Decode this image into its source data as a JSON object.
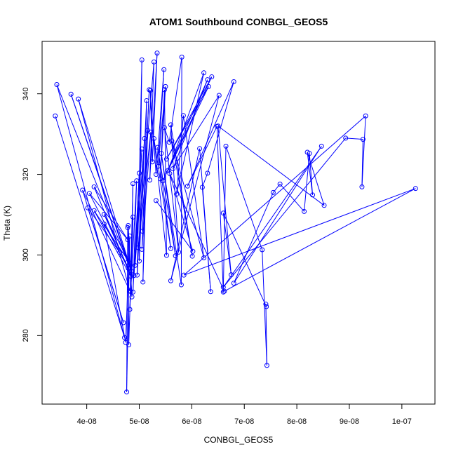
{
  "chart_data": {
    "type": "scatter",
    "title": "ATOM1 Southbound CONBGL_GEOS5",
    "xlabel": "CONBGL_GEOS5",
    "ylabel": "Theta (K)",
    "xlim": [
      3.15e-08,
      1.063e-07
    ],
    "ylim": [
      263,
      353
    ],
    "x_ticks": [
      {
        "value": 4e-08,
        "label": "4e-08"
      },
      {
        "value": 5e-08,
        "label": "5e-08"
      },
      {
        "value": 6e-08,
        "label": "6e-08"
      },
      {
        "value": 7e-08,
        "label": "7e-08"
      },
      {
        "value": 8e-08,
        "label": "8e-08"
      },
      {
        "value": 9e-08,
        "label": "9e-08"
      },
      {
        "value": 1e-07,
        "label": "1e-07"
      }
    ],
    "y_ticks": [
      {
        "value": 280,
        "label": "280"
      },
      {
        "value": 300,
        "label": "300"
      },
      {
        "value": 320,
        "label": "320"
      },
      {
        "value": 340,
        "label": "340"
      }
    ],
    "grid": false,
    "series": [
      {
        "color": "#0000ff",
        "marker": "open-circle",
        "line": true,
        "points": [
          [
            3.4e-08,
            334.5
          ],
          [
            4.72e-08,
            279.5
          ],
          [
            3.43e-08,
            342.3
          ],
          [
            4.78e-08,
            298.2
          ],
          [
            3.7e-08,
            339.9
          ],
          [
            4.85e-08,
            296.0
          ],
          [
            3.84e-08,
            338.7
          ],
          [
            4.82e-08,
            291.1
          ],
          [
            3.92e-08,
            316.1
          ],
          [
            4.7e-08,
            283.2
          ],
          [
            4.02e-08,
            311.7
          ],
          [
            4.63e-08,
            300.6
          ],
          [
            4.05e-08,
            315.3
          ],
          [
            4.78e-08,
            303.8
          ],
          [
            4.14e-08,
            316.9
          ],
          [
            4.84e-08,
            294.7
          ],
          [
            4.14e-08,
            311.0
          ],
          [
            4.82e-08,
            298.0
          ],
          [
            4.33e-08,
            310.1
          ],
          [
            4.79e-08,
            296.7
          ],
          [
            4.33e-08,
            307.7
          ],
          [
            4.74e-08,
            278.3
          ],
          [
            4.82e-08,
            304.7
          ],
          [
            4.76e-08,
            266.0
          ],
          [
            4.78e-08,
            306.8
          ],
          [
            4.86e-08,
            289.6
          ],
          [
            4.79e-08,
            307.3
          ],
          [
            4.8e-08,
            277.7
          ],
          [
            4.88e-08,
            309.4
          ],
          [
            4.84e-08,
            290.9
          ],
          [
            4.88e-08,
            317.7
          ],
          [
            4.82e-08,
            286.5
          ],
          [
            4.95e-08,
            318.4
          ],
          [
            4.88e-08,
            290.8
          ],
          [
            5e-08,
            320.3
          ],
          [
            4.9e-08,
            294.9
          ],
          [
            5.05e-08,
            326.3
          ],
          [
            4.92e-08,
            297.4
          ],
          [
            5.1e-08,
            328.9
          ],
          [
            4.96e-08,
            295.0
          ],
          [
            5.05e-08,
            348.4
          ],
          [
            5e-08,
            298.5
          ],
          [
            5.14e-08,
            338.3
          ],
          [
            5.07e-08,
            293.3
          ],
          [
            5.16e-08,
            330.9
          ],
          [
            5.06e-08,
            305.9
          ],
          [
            5.19e-08,
            341.0
          ],
          [
            5.05e-08,
            301.4
          ],
          [
            5.22e-08,
            330.5
          ],
          [
            4.98e-08,
            301.8
          ],
          [
            5.28e-08,
            347.9
          ],
          [
            5.2e-08,
            318.6
          ],
          [
            5.34e-08,
            350.1
          ],
          [
            5.25e-08,
            323.1
          ],
          [
            5.21e-08,
            340.8
          ],
          [
            5.32e-08,
            320.0
          ],
          [
            5.47e-08,
            346.0
          ],
          [
            5.36e-08,
            322.0
          ],
          [
            5.5e-08,
            341.8
          ],
          [
            5.4e-08,
            318.9
          ],
          [
            5.48e-08,
            341.0
          ],
          [
            5.52e-08,
            299.9
          ],
          [
            5.28e-08,
            328.9
          ],
          [
            5.6e-08,
            301.6
          ],
          [
            5.35e-08,
            326.7
          ],
          [
            5.69e-08,
            299.8
          ],
          [
            5.42e-08,
            325.2
          ],
          [
            5.8e-08,
            292.6
          ],
          [
            5.81e-08,
            349.1
          ],
          [
            5.57e-08,
            328.0
          ],
          [
            5.48e-08,
            331.6
          ],
          [
            5.75e-08,
            300.7
          ],
          [
            5.6e-08,
            332.3
          ],
          [
            6.01e-08,
            299.7
          ],
          [
            5.62e-08,
            328.3
          ],
          [
            6.23e-08,
            299.3
          ],
          [
            5.84e-08,
            334.6
          ],
          [
            5.71e-08,
            315.1
          ],
          [
            6.23e-08,
            345.2
          ],
          [
            5.55e-08,
            321.0
          ],
          [
            6.32e-08,
            341.8
          ],
          [
            5.52e-08,
            323.8
          ],
          [
            6.38e-08,
            344.2
          ],
          [
            5.45e-08,
            318.4
          ],
          [
            6.3e-08,
            343.5
          ],
          [
            5.64e-08,
            321.4
          ],
          [
            6.52e-08,
            339.6
          ],
          [
            5.6e-08,
            293.6
          ],
          [
            6.15e-08,
            326.4
          ],
          [
            6.36e-08,
            290.9
          ],
          [
            6.2e-08,
            316.8
          ],
          [
            6.3e-08,
            320.3
          ],
          [
            6.8e-08,
            343.0
          ],
          [
            5.92e-08,
            317.1
          ],
          [
            6.48e-08,
            331.9
          ],
          [
            6.6e-08,
            290.8
          ],
          [
            6.65e-08,
            327.0
          ],
          [
            7.34e-08,
            301.3
          ],
          [
            7.43e-08,
            272.6
          ],
          [
            7.41e-08,
            287.8
          ],
          [
            7.42e-08,
            287.2
          ],
          [
            6.6e-08,
            310.4
          ],
          [
            6.75e-08,
            295.1
          ],
          [
            6.5e-08,
            332.0
          ],
          [
            8.52e-08,
            312.3
          ],
          [
            8.2e-08,
            325.5
          ],
          [
            8.3e-08,
            314.9
          ],
          [
            8.24e-08,
            325.2
          ],
          [
            8.14e-08,
            310.8
          ],
          [
            7.68e-08,
            317.6
          ],
          [
            7.55e-08,
            315.5
          ],
          [
            6.8e-08,
            293.0
          ],
          [
            8.47e-08,
            327.0
          ],
          [
            6.6e-08,
            292.0
          ],
          [
            8.93e-08,
            329.0
          ],
          [
            9.26e-08,
            328.7
          ],
          [
            9.24e-08,
            316.9
          ],
          [
            9.31e-08,
            334.5
          ],
          [
            5.85e-08,
            295.0
          ],
          [
            1.026e-07,
            316.5
          ],
          [
            6.62e-08,
            291.0
          ],
          [
            5.58e-08,
            320.2
          ],
          [
            6.02e-08,
            300.9
          ],
          [
            5.32e-08,
            313.5
          ]
        ]
      }
    ]
  }
}
